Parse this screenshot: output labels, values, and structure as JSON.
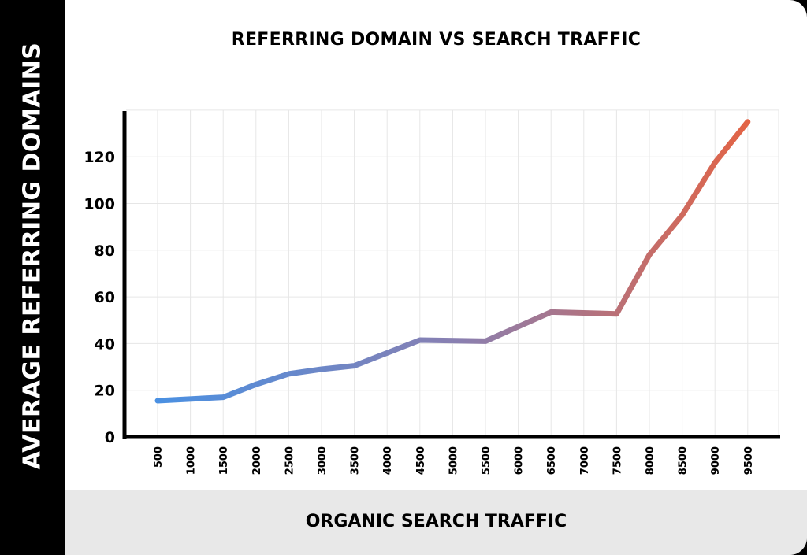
{
  "chart_data": {
    "type": "line",
    "title": "REFERRING DOMAIN VS SEARCH TRAFFIC",
    "xlabel": "ORGANIC SEARCH TRAFFIC",
    "ylabel": "AVERAGE REFERRING DOMAINS",
    "x_tick_labels": [
      "500",
      "1000",
      "1500",
      "2000",
      "2500",
      "3000",
      "3500",
      "4000",
      "4500",
      "5000",
      "5500",
      "6000",
      "6500",
      "7000",
      "7500",
      "8000",
      "8500",
      "9000",
      "9500"
    ],
    "y_tick_labels": [
      "0",
      "20",
      "40",
      "60",
      "80",
      "100",
      "120"
    ],
    "ylim": [
      0,
      140
    ],
    "grid": true,
    "legend": null,
    "series": [
      {
        "name": "Average Referring Domains",
        "x": [
          500,
          1500,
          2000,
          2500,
          3000,
          3500,
          4500,
          5500,
          6500,
          7500,
          8000,
          8500,
          9000,
          9500
        ],
        "values": [
          15.5,
          17,
          22.5,
          27,
          29,
          30.5,
          41.5,
          41,
          53.5,
          52.7,
          78,
          95,
          117.5,
          135
        ]
      }
    ],
    "colors": {
      "start": "#4a90e2",
      "mid": "#8a7fb0",
      "end": "#e8623f"
    }
  }
}
